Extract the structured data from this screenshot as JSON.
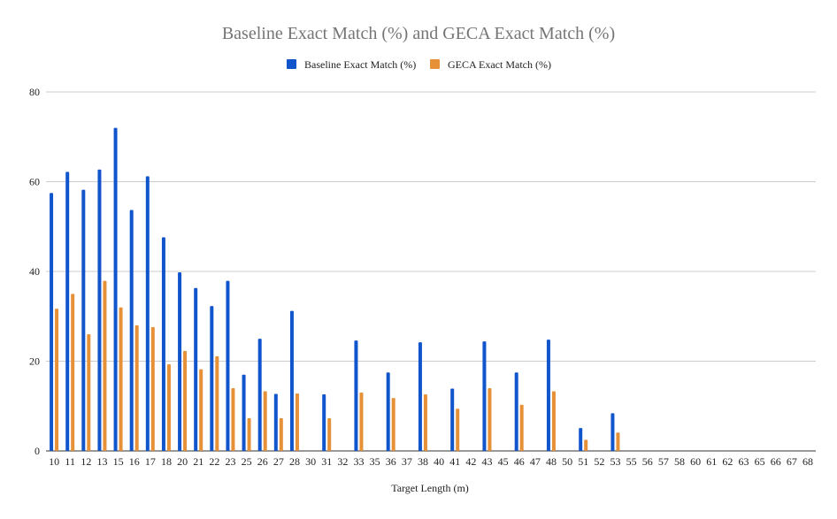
{
  "chart_data": {
    "type": "bar",
    "title": "Baseline Exact Match (%) and GECA Exact Match (%)",
    "xlabel": "Target Length (m)",
    "ylabel": "",
    "ylim": [
      0,
      80
    ],
    "yticks": [
      0,
      20,
      40,
      60,
      80
    ],
    "grid": true,
    "legend_position": "top",
    "categories": [
      "10",
      "11",
      "12",
      "13",
      "15",
      "16",
      "17",
      "18",
      "20",
      "21",
      "22",
      "23",
      "25",
      "26",
      "27",
      "28",
      "30",
      "31",
      "32",
      "33",
      "35",
      "36",
      "37",
      "38",
      "40",
      "41",
      "42",
      "43",
      "45",
      "46",
      "47",
      "48",
      "50",
      "51",
      "52",
      "53",
      "55",
      "56",
      "57",
      "58",
      "60",
      "61",
      "62",
      "63",
      "65",
      "66",
      "67",
      "68"
    ],
    "series": [
      {
        "name": "Baseline Exact Match (%)",
        "color": "#1155cc",
        "values": [
          57.5,
          62.2,
          58.2,
          62.7,
          72.0,
          53.7,
          61.2,
          47.6,
          39.8,
          36.3,
          32.3,
          37.9,
          17.0,
          25.0,
          12.7,
          31.2,
          0,
          12.6,
          0,
          24.6,
          0,
          17.5,
          0,
          24.2,
          0,
          13.9,
          0,
          24.4,
          0,
          17.5,
          0,
          24.8,
          0,
          5.1,
          0,
          8.4,
          0,
          0,
          0,
          0,
          0,
          0,
          0,
          0,
          0,
          0,
          0,
          0
        ]
      },
      {
        "name": "GECA Exact Match (%)",
        "color": "#e69138",
        "values": [
          31.7,
          35.0,
          26.0,
          37.9,
          32.0,
          28.0,
          27.6,
          19.3,
          22.3,
          18.2,
          21.1,
          14.0,
          7.3,
          13.3,
          7.3,
          12.8,
          0,
          7.3,
          0,
          13.0,
          0,
          11.8,
          0,
          12.6,
          0,
          9.4,
          0,
          14.0,
          0,
          10.3,
          0,
          13.3,
          0,
          2.5,
          0,
          4.1,
          0,
          0,
          0,
          0,
          0,
          0,
          0,
          0,
          0,
          0,
          0,
          0
        ]
      }
    ]
  }
}
